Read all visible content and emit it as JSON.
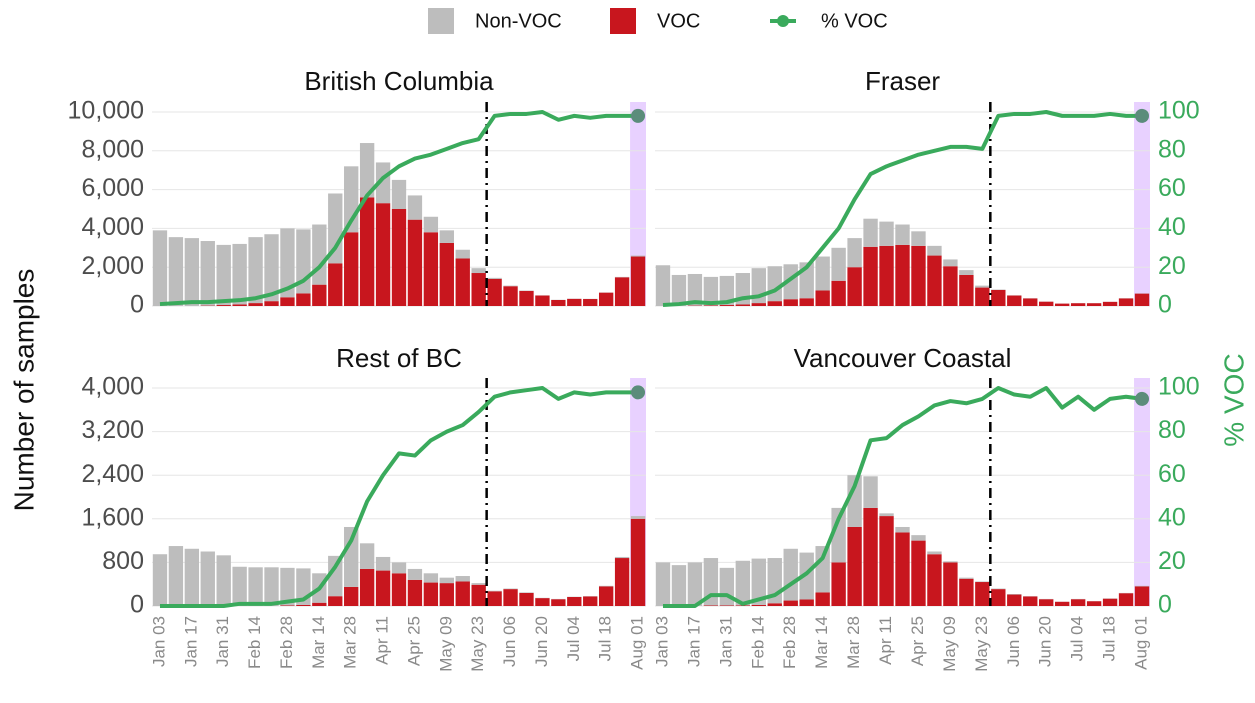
{
  "chart_data": [
    {
      "type": "bar",
      "title": "British Columbia",
      "ylabel": "Number of samples",
      "ylim": [
        0,
        10000
      ],
      "yticks": [
        0,
        {
          "value": 2000,
          "label": "2,000"
        },
        {
          "value": 4000,
          "label": "4,000"
        },
        {
          "value": 6000,
          "label": "6,000"
        },
        {
          "value": 8000,
          "label": "8,000"
        },
        {
          "value": 10000,
          "label": "10,000"
        }
      ],
      "y2lim": [
        0,
        100
      ],
      "grid": true,
      "series": [
        {
          "name": "Non-VOC",
          "color": "#bdbdbd",
          "values": [
            3900,
            3550,
            3500,
            3330,
            3100,
            3120,
            3400,
            3450,
            3550,
            3300,
            3100,
            3600,
            3400,
            2800,
            2100,
            1500,
            1250,
            800,
            650,
            450,
            250,
            50,
            30,
            20,
            10,
            10,
            10,
            10,
            10,
            20,
            50
          ]
        },
        {
          "name": "VOC",
          "color": "#c8161e",
          "values": [
            0,
            0,
            0,
            20,
            50,
            80,
            150,
            250,
            450,
            650,
            1100,
            2200,
            3800,
            5600,
            5300,
            5000,
            4450,
            3800,
            3250,
            2450,
            1700,
            1400,
            1020,
            780,
            540,
            310,
            370,
            360,
            690,
            1480,
            2550
          ]
        },
        {
          "name": "% VOC",
          "color": "#3aaa5c",
          "axis": "y2",
          "values": [
            1,
            1.5,
            2,
            2,
            2.5,
            3,
            4,
            6,
            9,
            13,
            20,
            30,
            44,
            57,
            66,
            72,
            76,
            78,
            81,
            84,
            86,
            98,
            99,
            99,
            100,
            96,
            98,
            97,
            98,
            98,
            98
          ]
        }
      ]
    },
    {
      "type": "bar",
      "title": "Fraser",
      "ylim": [
        0,
        10000
      ],
      "y2lim": [
        0,
        100
      ],
      "y2ticks": [
        0,
        20,
        40,
        60,
        80,
        100
      ],
      "grid": true,
      "series": [
        {
          "color": "#bdbdbd",
          "values": [
            2100,
            1600,
            1630,
            1470,
            1500,
            1620,
            1800,
            1800,
            1800,
            1850,
            1750,
            1700,
            1500,
            1450,
            1250,
            1050,
            750,
            500,
            350,
            250,
            100,
            20,
            10,
            10,
            5,
            5,
            5,
            5,
            5,
            10,
            10
          ]
        },
        {
          "color": "#c8161e",
          "values": [
            0,
            0,
            20,
            30,
            50,
            80,
            150,
            250,
            350,
            400,
            800,
            1300,
            2000,
            3050,
            3100,
            3150,
            3100,
            2600,
            2050,
            1600,
            950,
            830,
            540,
            390,
            225,
            125,
            145,
            145,
            215,
            390,
            640
          ]
        },
        {
          "color": "#3aaa5c",
          "axis": "y2",
          "values": [
            0.5,
            1,
            2,
            1.5,
            2,
            4,
            5,
            8,
            14,
            20,
            30,
            40,
            55,
            68,
            72,
            75,
            78,
            80,
            82,
            82,
            81,
            98,
            99,
            99,
            100,
            98,
            98,
            98,
            99,
            98,
            98
          ]
        }
      ]
    },
    {
      "type": "bar",
      "title": "Rest of BC",
      "categories": [
        "Jan 03",
        null,
        "Jan 17",
        null,
        "Jan 31",
        null,
        "Feb 14",
        null,
        "Feb 28",
        null,
        "Mar 14",
        null,
        "Mar 28",
        null,
        "Apr 11",
        null,
        "Apr 25",
        null,
        "May 09",
        null,
        "May 23",
        null,
        "Jun 06",
        null,
        "Jun 20",
        null,
        "Jul 04",
        null,
        "Jul 18",
        null,
        "Aug 01"
      ],
      "ylim": [
        0,
        4000
      ],
      "yticks": [
        0,
        800,
        {
          "value": 1600,
          "label": "1,600"
        },
        {
          "value": 2400,
          "label": "2,400"
        },
        {
          "value": 3200,
          "label": "3,200"
        },
        {
          "value": 4000,
          "label": "4,000"
        }
      ],
      "y2lim": [
        0,
        100
      ],
      "grid": true,
      "series": [
        {
          "color": "#bdbdbd",
          "values": [
            950,
            1100,
            1050,
            1000,
            930,
            720,
            710,
            710,
            690,
            670,
            540,
            740,
            1100,
            470,
            250,
            200,
            200,
            170,
            100,
            100,
            30,
            10,
            10,
            10,
            5,
            5,
            5,
            5,
            10,
            20,
            50
          ]
        },
        {
          "color": "#c8161e",
          "values": [
            0,
            0,
            0,
            0,
            0,
            0,
            0,
            0,
            10,
            20,
            60,
            180,
            350,
            680,
            650,
            600,
            480,
            430,
            420,
            450,
            390,
            270,
            310,
            240,
            145,
            125,
            165,
            175,
            360,
            880,
            1600
          ]
        },
        {
          "color": "#3aaa5c",
          "axis": "y2",
          "values": [
            0,
            0,
            0,
            0,
            0,
            1,
            1,
            1,
            2,
            3,
            8,
            18,
            30,
            48,
            60,
            70,
            69,
            76,
            80,
            83,
            89,
            96,
            98,
            99,
            100,
            95,
            98,
            97,
            98,
            98,
            98
          ]
        }
      ]
    },
    {
      "type": "bar",
      "title": "Vancouver Coastal",
      "y2label": "% VOC",
      "categories": [
        "Jan 03",
        null,
        "Jan 17",
        null,
        "Jan 31",
        null,
        "Feb 14",
        null,
        "Feb 28",
        null,
        "Mar 14",
        null,
        "Mar 28",
        null,
        "Apr 11",
        null,
        "Apr 25",
        null,
        "May 09",
        null,
        "May 23",
        null,
        "Jun 06",
        null,
        "Jun 20",
        null,
        "Jul 04",
        null,
        "Jul 18",
        null,
        "Aug 01"
      ],
      "ylim": [
        0,
        4000
      ],
      "y2lim": [
        0,
        100
      ],
      "y2ticks": [
        0,
        20,
        40,
        60,
        80,
        100
      ],
      "grid": true,
      "series": [
        {
          "color": "#bdbdbd",
          "values": [
            800,
            750,
            800,
            870,
            690,
            820,
            850,
            830,
            950,
            860,
            850,
            1000,
            950,
            580,
            50,
            100,
            100,
            50,
            20,
            20,
            10,
            10,
            10,
            5,
            5,
            2,
            5,
            2,
            5,
            5,
            10
          ]
        },
        {
          "color": "#c8161e",
          "values": [
            0,
            0,
            0,
            10,
            10,
            10,
            20,
            50,
            100,
            120,
            250,
            800,
            1450,
            1800,
            1650,
            1350,
            1200,
            950,
            800,
            500,
            440,
            310,
            210,
            175,
            125,
            78,
            125,
            88,
            135,
            235,
            360
          ]
        },
        {
          "color": "#3aaa5c",
          "axis": "y2",
          "values": [
            0,
            0,
            0,
            5,
            5,
            1,
            3,
            5,
            10,
            15,
            22,
            40,
            55,
            76,
            77,
            83,
            87,
            92,
            94,
            93,
            95,
            100,
            97,
            96,
            100,
            91,
            96,
            90,
            95,
            96,
            95
          ]
        }
      ]
    }
  ]
}
